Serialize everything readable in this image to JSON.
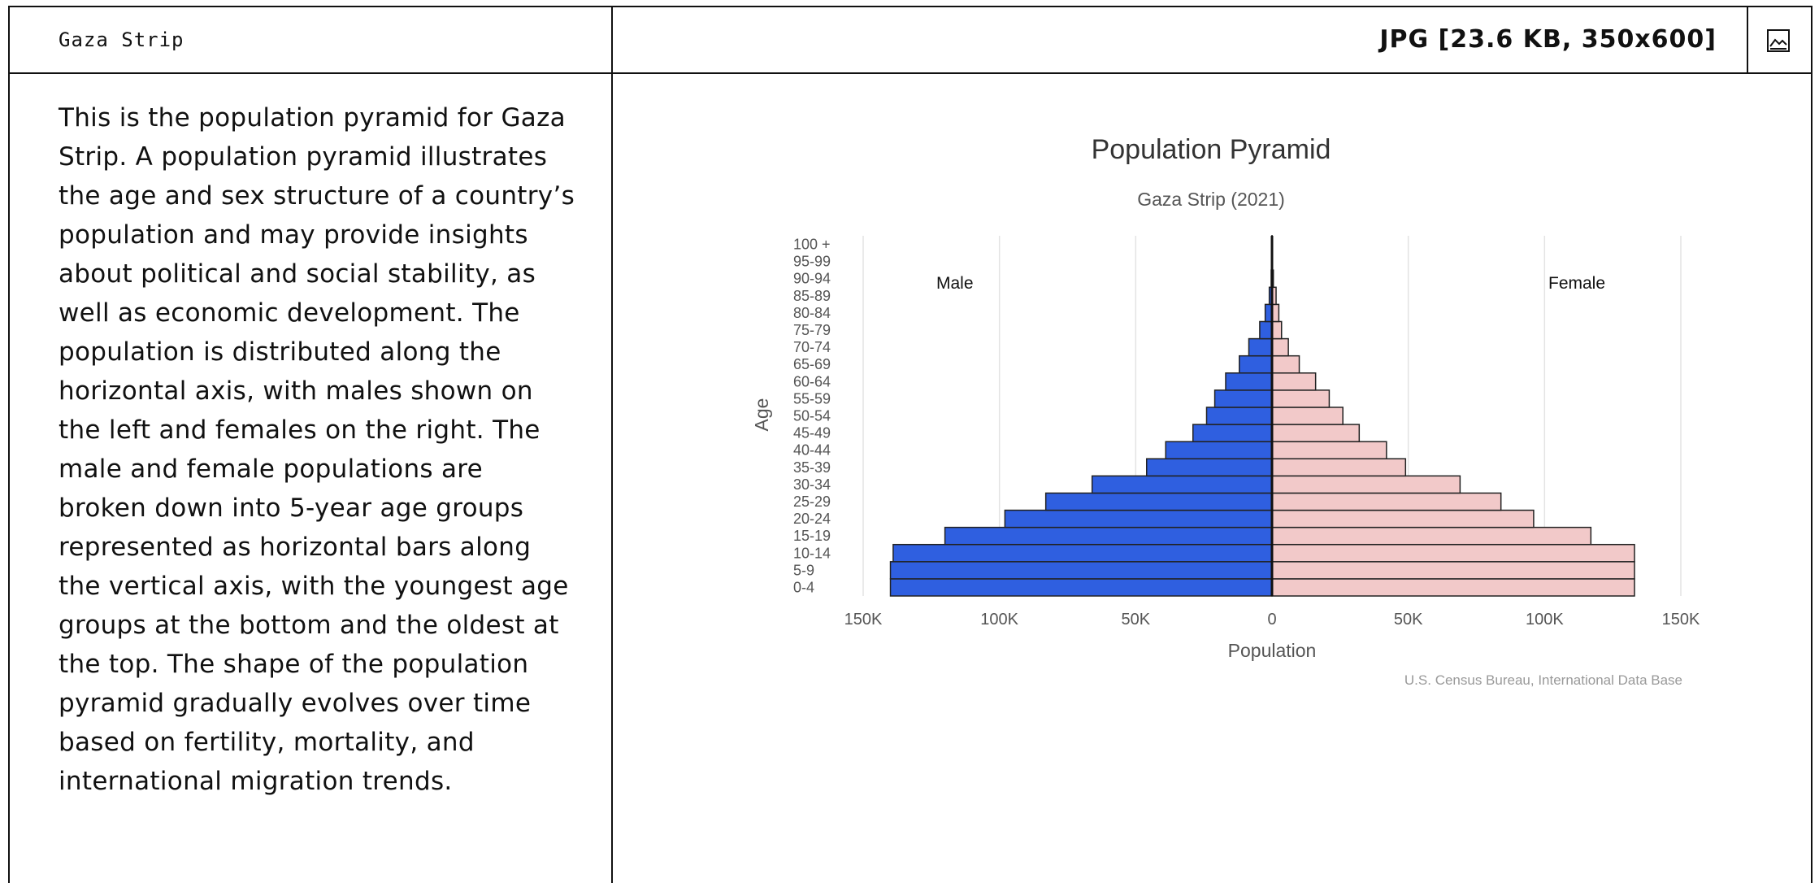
{
  "header": {
    "place": "Gaza Strip",
    "file_info": "JPG [23.6 KB, 350x600]"
  },
  "description": "This is the population pyramid for Gaza Strip. A population pyramid illustrates the age and sex structure of a country’s population and may provide insights about political and social stability, as well as economic development. The population is distributed along the horizontal axis, with males shown on the left and females on the right. The male and female populations are broken down into 5-year age groups represented as horizontal bars along the vertical axis, with the youngest age groups at the bottom and the oldest at the top. The shape of the population pyramid gradually evolves over time based on fertility, mortality, and international migration trends.",
  "icons": {
    "image_view": "image-icon"
  },
  "chart_data": {
    "type": "bar",
    "orientation": "horizontal-pyramid",
    "title": "Population Pyramid",
    "subtitle": "Gaza Strip (2021)",
    "xlabel": "Population",
    "ylabel": "Age",
    "source": "U.S. Census Bureau, International Data Base",
    "categories": [
      "0-4",
      "5-9",
      "10-14",
      "15-19",
      "20-24",
      "25-29",
      "30-34",
      "35-39",
      "40-44",
      "45-49",
      "50-54",
      "55-59",
      "60-64",
      "65-69",
      "70-74",
      "75-79",
      "80-84",
      "85-89",
      "90-94",
      "95-99",
      "100 +"
    ],
    "series": [
      {
        "name": "Male",
        "color": "#2f5fe0",
        "values": [
          140000,
          140000,
          139000,
          120000,
          98000,
          83000,
          66000,
          46000,
          39000,
          29000,
          24000,
          21000,
          17000,
          12000,
          8500,
          4500,
          2500,
          1000,
          300,
          80,
          20
        ]
      },
      {
        "name": "Female",
        "color": "#f2c9c9",
        "values": [
          133000,
          133000,
          133000,
          117000,
          96000,
          84000,
          69000,
          49000,
          42000,
          32000,
          26000,
          21000,
          16000,
          10000,
          6000,
          3500,
          2500,
          1500,
          500,
          100,
          30
        ]
      }
    ],
    "xlim": [
      -150000,
      150000
    ],
    "xticks": [
      -150000,
      -100000,
      -50000,
      0,
      50000,
      100000,
      150000
    ],
    "xtick_labels": [
      "150K",
      "100K",
      "50K",
      "0",
      "50K",
      "100K",
      "150K"
    ],
    "grid": true,
    "legend": "in-plot labels top-left and top-right"
  }
}
